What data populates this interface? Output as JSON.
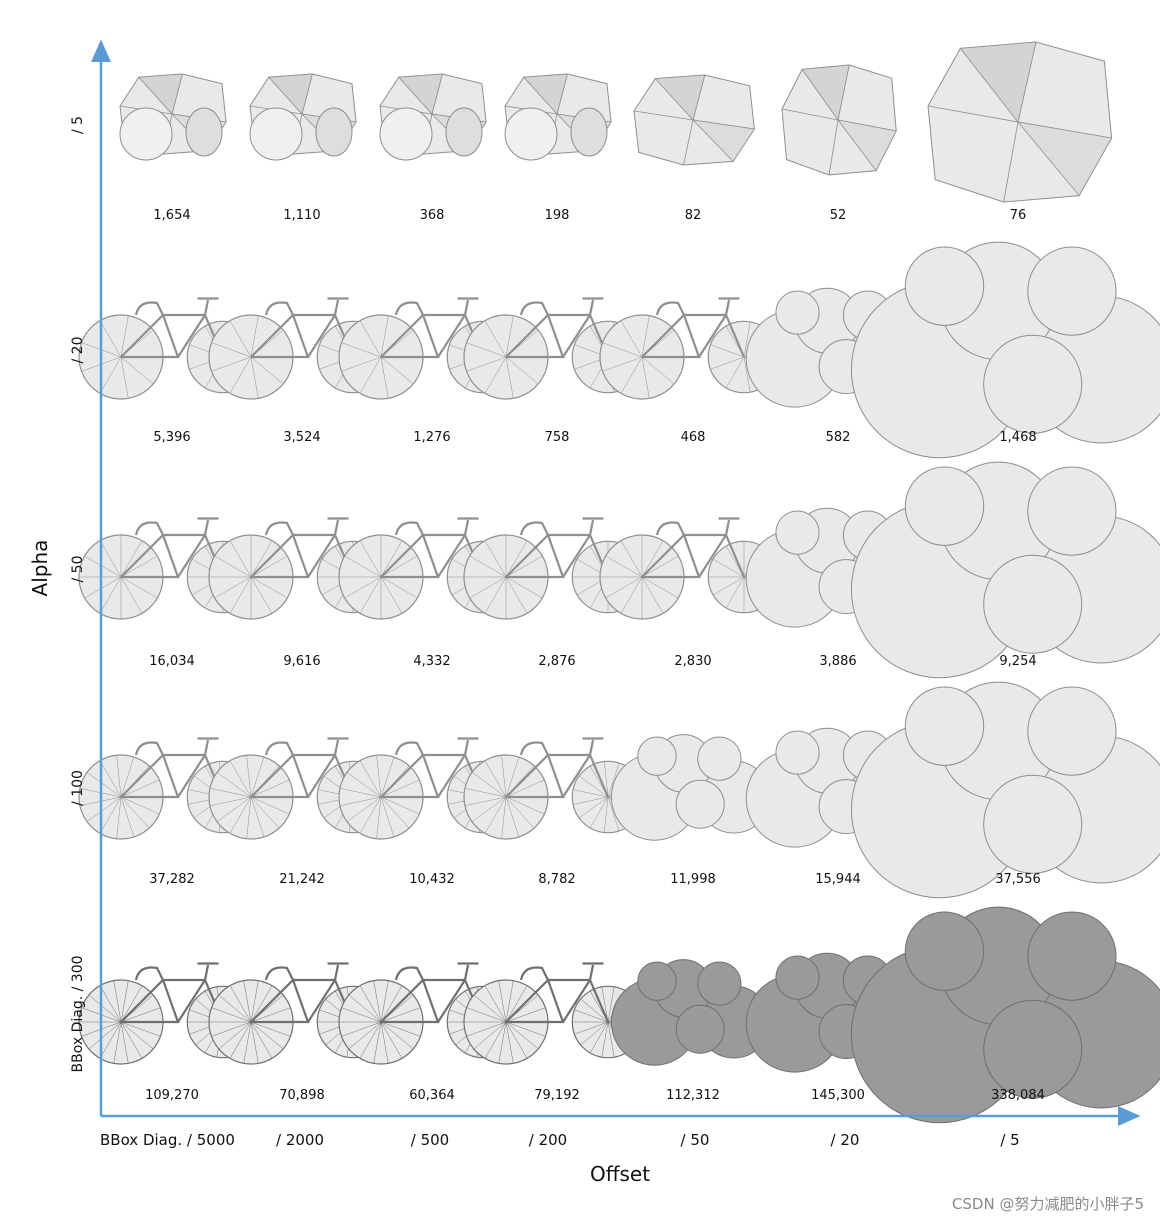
{
  "axes": {
    "x_title": "Offset",
    "y_title": "Alpha",
    "axis_color": "#5b9bd5"
  },
  "columns": [
    "BBox Diag. / 5000",
    "/ 2000",
    "/ 500",
    "/ 200",
    "/ 50",
    "/ 20",
    "/ 5"
  ],
  "rows": [
    {
      "label": "/ 5",
      "counts": [
        "1,654",
        "1,110",
        "368",
        "198",
        "82",
        "52",
        "76"
      ]
    },
    {
      "label": "/ 20",
      "counts": [
        "5,396",
        "3,524",
        "1,276",
        "758",
        "468",
        "582",
        "1,468"
      ]
    },
    {
      "label": "/ 50",
      "counts": [
        "16,034",
        "9,616",
        "4,332",
        "2,876",
        "2,830",
        "3,886",
        "9,254"
      ]
    },
    {
      "label": "/ 100",
      "counts": [
        "37,282",
        "21,242",
        "10,432",
        "8,782",
        "11,998",
        "15,944",
        "37,556"
      ]
    },
    {
      "label": "BBox Diag. / 300",
      "counts": [
        "109,270",
        "70,898",
        "60,364",
        "79,192",
        "112,312",
        "145,300",
        "338,084"
      ]
    }
  ],
  "watermark": "CSDN @努力减肥的小胖子5",
  "colors": {
    "mesh_fill": "#e9e9e9",
    "mesh_stroke": "#8f8f8f",
    "mesh_dark": "#9a9a9a"
  }
}
